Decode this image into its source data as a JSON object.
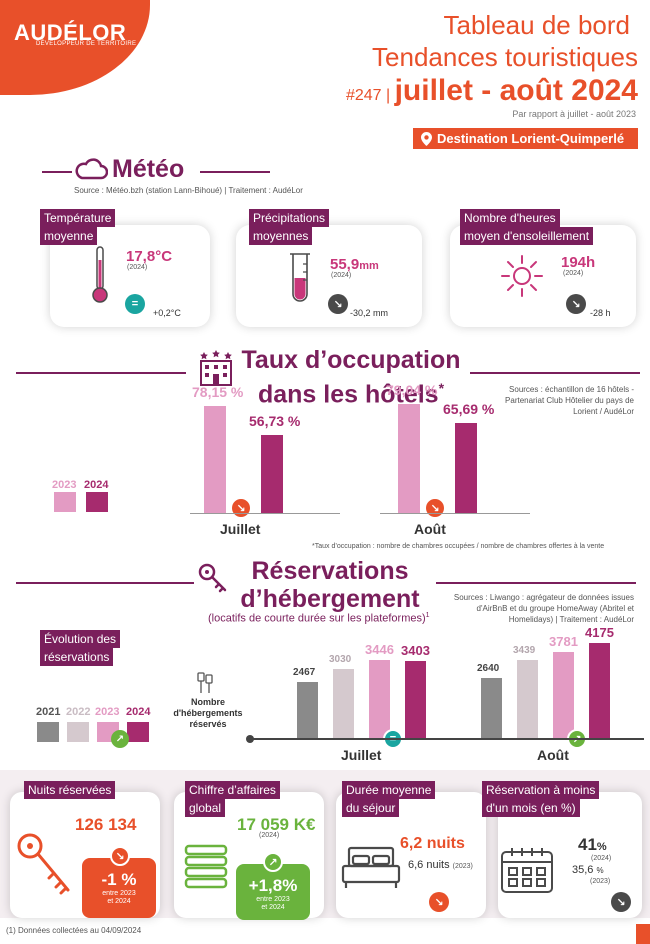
{
  "header": {
    "logo": "AUDÉLOR",
    "logo_sub": "DÉVELOPPEUR DE TERRITOIRE",
    "title_line1": "Tableau de bord",
    "title_line2": "Tendances touristiques",
    "issue": "#247 |",
    "period": "juillet - août 2024",
    "compare": "Par rapport à juillet - août  2023",
    "destination": "Destination Lorient-Quimperlé",
    "icons": {
      "destination": "location-pin-icon"
    }
  },
  "meteo": {
    "title": "Météo",
    "source": "Source : Météo.bzh (station Lann-Bihoué) | Traitement : AudéLor",
    "icon": "cloud-icon",
    "cards": [
      {
        "label1": "Température",
        "label2": "moyenne",
        "value": "17,8°C",
        "year": "(2024)",
        "delta": "+0,2°C",
        "trend": "=",
        "icon": "thermometer-icon"
      },
      {
        "label1": "Précipitations",
        "label2": "moyennes",
        "value": "55,9",
        "unit": "mm",
        "year": "(2024)",
        "delta": "-30,2 mm",
        "trend": "↘",
        "icon": "rain-gauge-icon"
      },
      {
        "label1": "Nombre d'heures",
        "label2": "moyen d'ensoleillement",
        "value": "194h",
        "year": "(2024)",
        "delta": "-28 h",
        "trend": "↘",
        "icon": "sun-icon"
      }
    ]
  },
  "occupation": {
    "title1": "Taux d’occupation",
    "title2": "dans les hôtels",
    "asterisk": "*",
    "icon": "hotel-icon",
    "source": [
      "Sources : échantillon de 16 hôtels -",
      "Partenariat Club Hôtelier du pays de",
      "Lorient / AudéLor"
    ],
    "legend": [
      "2023",
      "2024"
    ],
    "footnote": "*Taux d’occupation : nombre de chambres occupées / nombre de chambres offertes à la vente"
  },
  "reservations": {
    "title1": "Réservations",
    "title2": "d’hébergement",
    "subtitle": "(locatifs de courte durée sur les plateformes)",
    "sup": "1",
    "icon": "key-icon",
    "source": [
      "Sources : Liwango : agrégateur de données issues",
      "d'AirBnB et du groupe HomeAway (Abritel et",
      "Homelidays) | Traitement : AudéLor"
    ],
    "evolution_label1": "Évolution des",
    "evolution_label2": "réservations",
    "legend": [
      "2021",
      "2022",
      "2023",
      "2024"
    ],
    "axis_label": [
      "Nombre",
      "d'hébergements",
      "réservés"
    ]
  },
  "chart_data": [
    {
      "type": "bar",
      "categories": [
        "Juillet",
        "Août"
      ],
      "series": [
        {
          "name": "2023",
          "values": [
            78.15,
            79.04
          ],
          "labels": [
            "78,15 %",
            "79,04 %"
          ]
        },
        {
          "name": "2024",
          "values": [
            56.73,
            65.69
          ],
          "labels": [
            "56,73 %",
            "65,69 %"
          ]
        }
      ],
      "trend": [
        "↘",
        "↘"
      ],
      "ylim": [
        0,
        100
      ],
      "color": {
        "2023": "#e39bc3",
        "2024": "#a62b6e"
      }
    },
    {
      "type": "bar",
      "categories": [
        "Juillet",
        "Août"
      ],
      "series": [
        {
          "name": "2021",
          "values": [
            2467,
            2640
          ]
        },
        {
          "name": "2022",
          "values": [
            3030,
            3439
          ]
        },
        {
          "name": "2023",
          "values": [
            3446,
            3781
          ]
        },
        {
          "name": "2024",
          "values": [
            3403,
            4175
          ]
        }
      ],
      "trend": [
        "=",
        "↗"
      ],
      "ylim": [
        0,
        4500
      ],
      "color": {
        "2021": "#8a8a8a",
        "2022": "#d5c9ce",
        "2023": "#e39bc3",
        "2024": "#a62b6e"
      }
    }
  ],
  "kpis": {
    "nights": {
      "label": "Nuits réservées",
      "value": "126 134",
      "chip": "-1 %",
      "chip_sub": [
        "entre 2023",
        "et 2024"
      ],
      "icon": "key-outline-icon"
    },
    "revenue": {
      "label1": "Chiffre d’affaires",
      "label2": "global",
      "value": "17 059 K€",
      "year": "(2024)",
      "chip": "+1,8%",
      "chip_sub": [
        "entre 2023",
        "et 2024"
      ],
      "icon": "money-stack-icon"
    },
    "stay": {
      "label1": "Durée moyenne",
      "label2": "du séjour",
      "value": "6,2 nuits",
      "prev": "6,6 nuits",
      "prev_year": "(2023)",
      "icon": "bed-icon"
    },
    "lastmin": {
      "label1": "Réservation à moins",
      "label2": "d'un mois (en %)",
      "value": "41",
      "unit": "%",
      "year": "(2024)",
      "prev": "35,6",
      "prev_unit": "%",
      "prev_year": "(2023)",
      "icon": "calendar-icon"
    }
  },
  "footer": {
    "note": "(1) Données collectées au 04/09/2024"
  }
}
